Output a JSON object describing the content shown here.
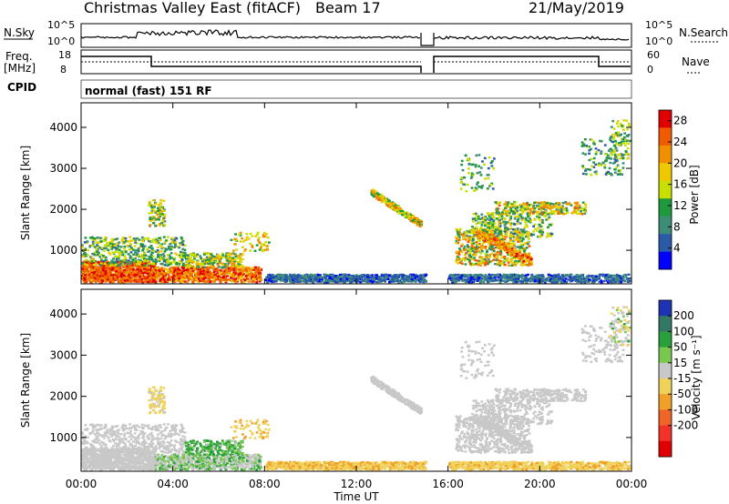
{
  "header": {
    "station": "Christmas Valley East (fitACF)",
    "beam": "Beam 17",
    "date": "21/May/2019"
  },
  "strip_labels": {
    "nsky": "N.Sky",
    "nsky_ticks": [
      "10^5",
      "10^0"
    ],
    "nsearch": "N.Search",
    "nsearch_ticks": [
      "10^5",
      "10^0"
    ],
    "freq_line1": "Freq.",
    "freq_line2": "[MHz]",
    "freq_ticks": [
      "18",
      "8"
    ],
    "nave": "Nave",
    "nave_ticks": [
      "60",
      "0"
    ],
    "cpid": "CPID",
    "mode": "normal (fast) 151 RF"
  },
  "colors": {
    "power_scale": [
      "#0000ff",
      "#2b5aa8",
      "#3c8c78",
      "#1e9a3c",
      "#c8e000",
      "#f0c800",
      "#f09000",
      "#f05a00",
      "#e00000"
    ],
    "velocity_scale": [
      "#1e32b4",
      "#327864",
      "#2aa03c",
      "#78c850",
      "#c8c8c8",
      "#f0d25a",
      "#f0a028",
      "#f06428",
      "#f03228",
      "#e00000"
    ]
  },
  "chart_data": [
    {
      "type": "heatmap",
      "name": "power_panel",
      "ylabel": "Slant Range [km]",
      "yticks": [
        "1000",
        "2000",
        "3000",
        "4000"
      ],
      "ylim": [
        180,
        4600
      ],
      "xlim": [
        0,
        24
      ],
      "colorbar_label": "Power [dB]",
      "colorbar_ticks": [
        "4",
        "8",
        "12",
        "16",
        "20",
        "24",
        "28"
      ],
      "colorbar_range": [
        0,
        30
      ]
    },
    {
      "type": "heatmap",
      "name": "velocity_panel",
      "ylabel": "Slant Range [km]",
      "yticks": [
        "1000",
        "2000",
        "3000",
        "4000"
      ],
      "ylim": [
        180,
        4600
      ],
      "xlim": [
        0,
        24
      ],
      "xlabel": "Time UT",
      "xticks": [
        "00:00",
        "04:00",
        "08:00",
        "12:00",
        "16:00",
        "20:00",
        "00:00"
      ],
      "colorbar_label": "Velocity [m s⁻¹]",
      "colorbar_ticks": [
        "200",
        "100",
        "50",
        "15",
        "-15",
        "-50",
        "-100",
        "-200"
      ]
    }
  ]
}
